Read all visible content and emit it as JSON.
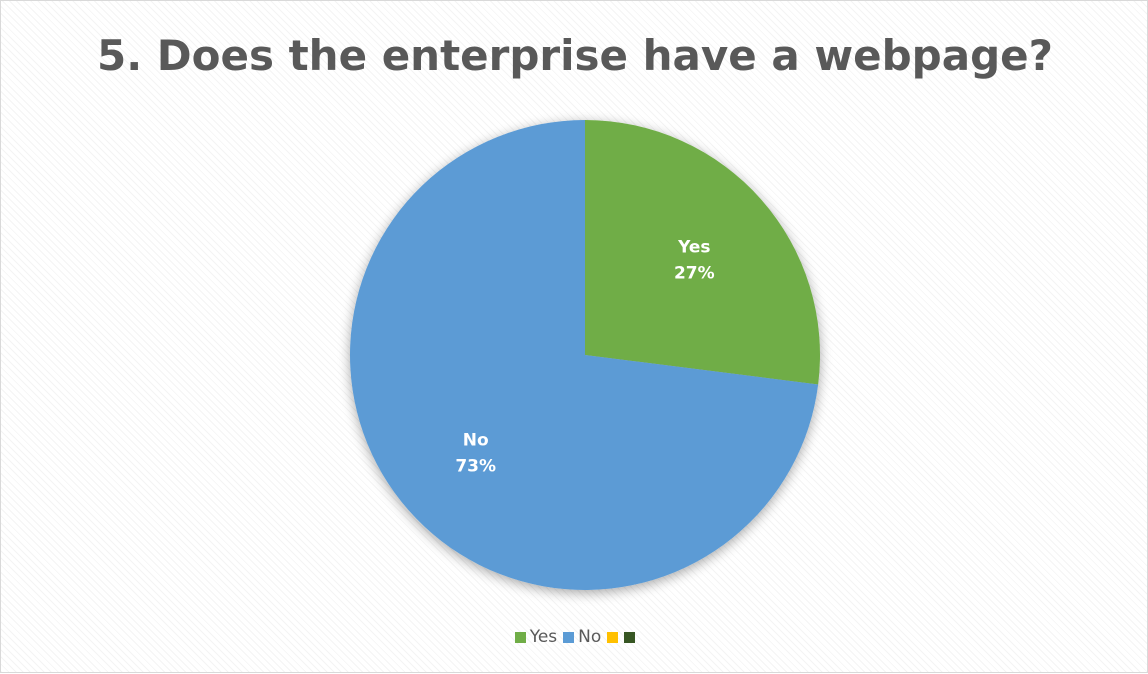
{
  "chart_data": {
    "type": "pie",
    "title": "5. Does the enterprise have a webpage?",
    "slices": [
      {
        "label": "Yes",
        "value": 27,
        "percent_label": "27%",
        "color": "#70ad47"
      },
      {
        "label": "No",
        "value": 73,
        "percent_label": "73%",
        "color": "#5b9bd5"
      }
    ],
    "legend": {
      "placement": "bottom",
      "entries": [
        {
          "label": "Yes",
          "color": "#70ad47"
        },
        {
          "label": "No",
          "color": "#5b9bd5"
        },
        {
          "label": "",
          "color": "#ffc000"
        },
        {
          "label": "",
          "color": "#375623"
        }
      ]
    }
  }
}
